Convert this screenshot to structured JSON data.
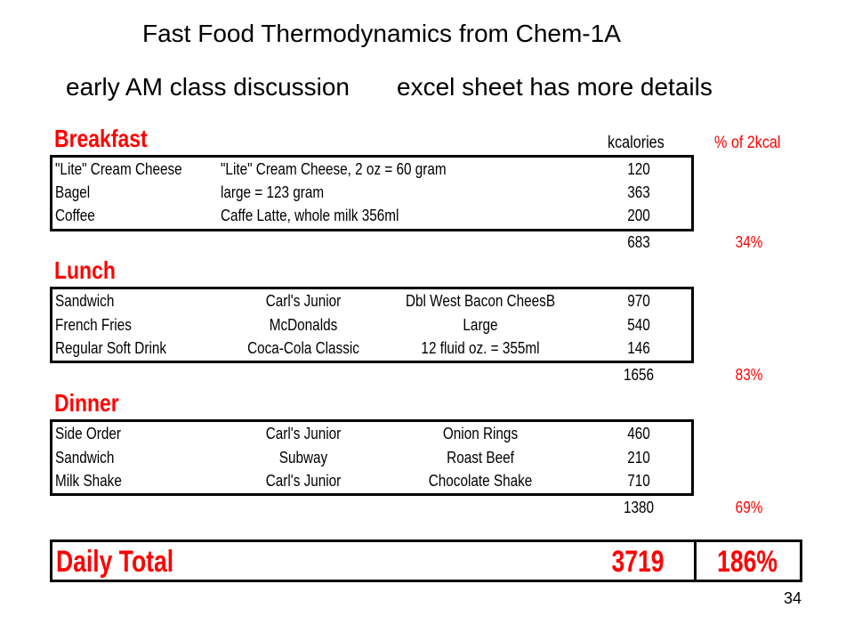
{
  "title": "Fast Food Thermodynamics from Chem-1A",
  "subtitle_left": "early AM class discussion",
  "subtitle_right": "excel sheet has more details",
  "headers": {
    "kcal": "kcalories",
    "pct": "% of 2kcal"
  },
  "breakfast": {
    "label": "Breakfast",
    "rows": [
      {
        "item": "\"Lite\" Cream Cheese",
        "detail": "\"Lite\" Cream Cheese, 2 oz = 60 gram",
        "kcal": "120"
      },
      {
        "item": "Bagel",
        "detail": "large = 123 gram",
        "kcal": "363"
      },
      {
        "item": "Coffee",
        "detail": "Caffe Latte, whole milk 356ml",
        "kcal": "200"
      }
    ],
    "total": "683",
    "pct": "34%"
  },
  "lunch": {
    "label": "Lunch",
    "rows": [
      {
        "item": "Sandwich",
        "vendor": "Carl's Junior",
        "product": "Dbl West Bacon CheesB",
        "kcal": "970"
      },
      {
        "item": "French Fries",
        "vendor": "McDonalds",
        "product": "Large",
        "kcal": "540"
      },
      {
        "item": "Regular Soft Drink",
        "vendor": "Coca-Cola Classic",
        "product": "12 fluid oz. = 355ml",
        "kcal": "146"
      }
    ],
    "total": "1656",
    "pct": "83%"
  },
  "dinner": {
    "label": "Dinner",
    "rows": [
      {
        "item": "Side Order",
        "vendor": "Carl's Junior",
        "product": "Onion Rings",
        "kcal": "460"
      },
      {
        "item": "Sandwich",
        "vendor": "Subway",
        "product": "Roast Beef",
        "kcal": "210"
      },
      {
        "item": "Milk Shake",
        "vendor": "Carl's Junior",
        "product": "Chocolate Shake",
        "kcal": "710"
      }
    ],
    "total": "1380",
    "pct": "69%"
  },
  "daily": {
    "label": "Daily Total",
    "total": "3719",
    "pct": "186%"
  },
  "page_number": "34"
}
